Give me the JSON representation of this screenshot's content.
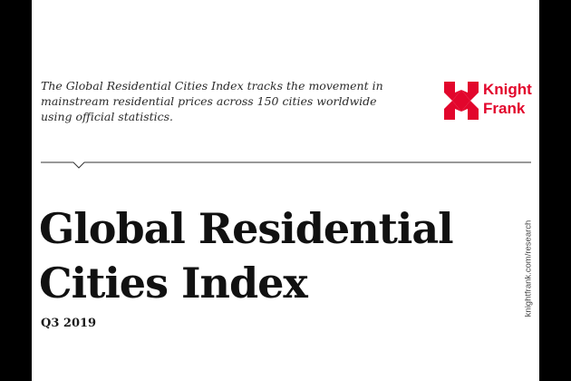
{
  "intro_text": "The Global Residential Cities Index tracks the movement in mainstream residential prices across 150 cities worldwide using official statistics.",
  "logo": {
    "line1": "Knight",
    "line2": "Frank",
    "color": "#e2062c"
  },
  "title": {
    "line1": "Global Residential",
    "line2": "Cities Index"
  },
  "subtitle": "Q3 2019",
  "side_url": "knightfrank.com/research"
}
